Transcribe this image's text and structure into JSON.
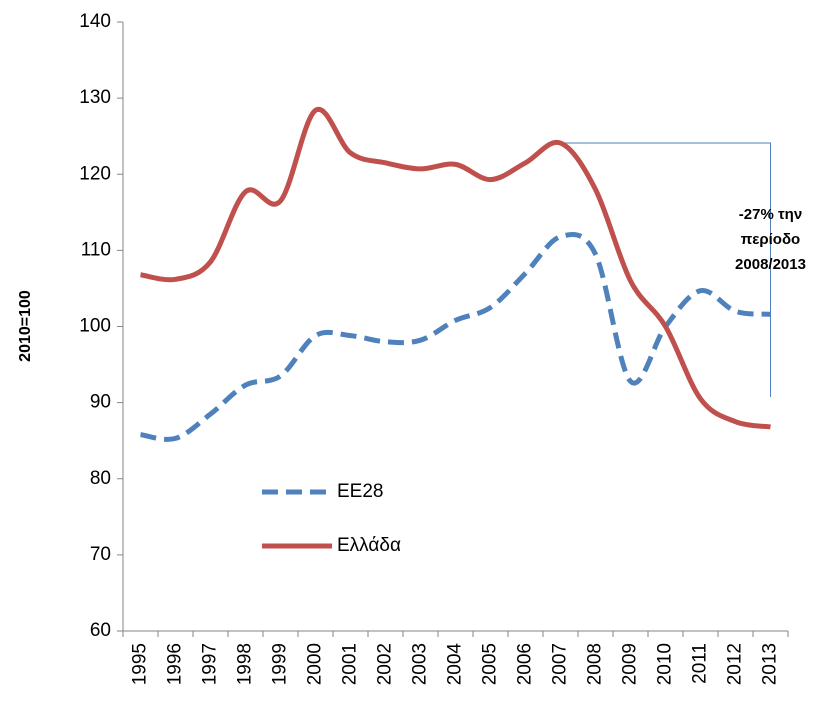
{
  "chart_data": {
    "type": "line",
    "ylabel": "2010=100",
    "categories": [
      "1995",
      "1996",
      "1997",
      "1998",
      "1999",
      "2000",
      "2001",
      "2002",
      "2003",
      "2004",
      "2005",
      "2006",
      "2007",
      "2008",
      "2009",
      "2010",
      "2011",
      "2012",
      "2013"
    ],
    "series": [
      {
        "name": "ΕΕ28",
        "color": "#4f81bd",
        "dash": true,
        "values": [
          85.8,
          85.3,
          88.5,
          92.3,
          93.5,
          98.8,
          98.8,
          98.0,
          98.2,
          100.8,
          102.5,
          107.0,
          111.8,
          109.5,
          92.8,
          100.0,
          104.7,
          102.0,
          101.6
        ]
      },
      {
        "name": "Ελλάδα",
        "color": "#c0504d",
        "dash": false,
        "values": [
          106.8,
          106.2,
          108.5,
          117.7,
          116.5,
          128.4,
          122.8,
          121.5,
          120.7,
          121.3,
          119.3,
          121.5,
          124.1,
          118.0,
          106.0,
          100.0,
          90.5,
          87.5,
          86.8
        ]
      }
    ],
    "ylim": [
      60,
      140
    ],
    "yticks": [
      60,
      70,
      80,
      90,
      100,
      110,
      120,
      130,
      140
    ],
    "annotation": [
      "-27% την",
      "περίοδο",
      "2008/2013"
    ],
    "legend": "lower left"
  }
}
